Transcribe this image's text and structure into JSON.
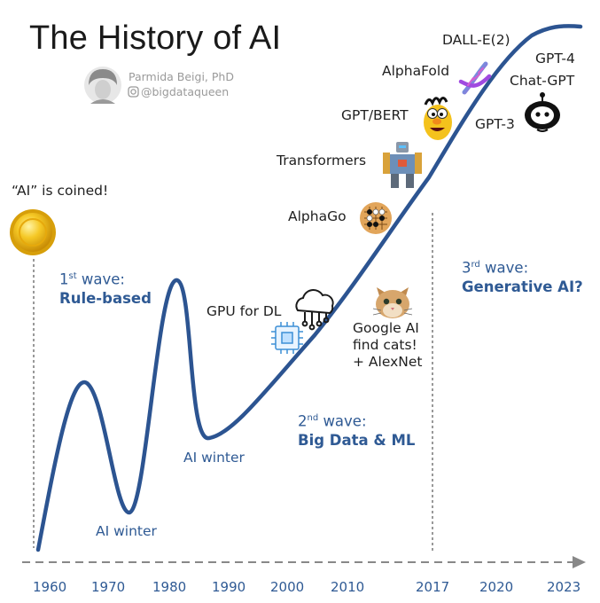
{
  "title": "The History of AI",
  "author": {
    "name": "Parmida Beigi, PhD",
    "handle": "@bigdataqueen"
  },
  "milestones": {
    "ai_coined": "“AI” is coined!",
    "ai_winter_1": "AI winter",
    "ai_winter_2": "AI winter",
    "gpu_for_dl": "GPU for DL",
    "google_ai": [
      "Google AI",
      "find cats!",
      "+ AlexNet"
    ],
    "alphago": "AlphaGo",
    "transformers": "Transformers",
    "gpt_bert": "GPT/BERT",
    "alphafold": "AlphaFold",
    "dalle": "DALL-E(2)",
    "gpt3": "GPT-3",
    "gpt4": "GPT-4",
    "chatgpt": "Chat-GPT"
  },
  "waves": [
    {
      "num": "1",
      "sup": "st",
      "word": "wave:",
      "name": "Rule-based"
    },
    {
      "num": "2",
      "sup": "nd",
      "word": "wave:",
      "name": "Big Data & ML"
    },
    {
      "num": "3",
      "sup": "rd",
      "word": "wave:",
      "name": "Generative AI?"
    }
  ],
  "years": [
    "1960",
    "1970",
    "1980",
    "1990",
    "2000",
    "2010",
    "2017",
    "2020",
    "2023"
  ],
  "icons": [
    "gold-coin-icon",
    "avatar-portrait",
    "instagram-icon",
    "gpu-chip-icon",
    "cloud-network-icon",
    "cat-icon",
    "go-board-icon",
    "robot-transformer-icon",
    "bert-character-icon",
    "dna-icon",
    "chatbot-icon"
  ],
  "colors": {
    "curve": "#2c5491",
    "accent_text": "#2f5a94",
    "axis": "#888888",
    "coin": "#e8b71a"
  }
}
